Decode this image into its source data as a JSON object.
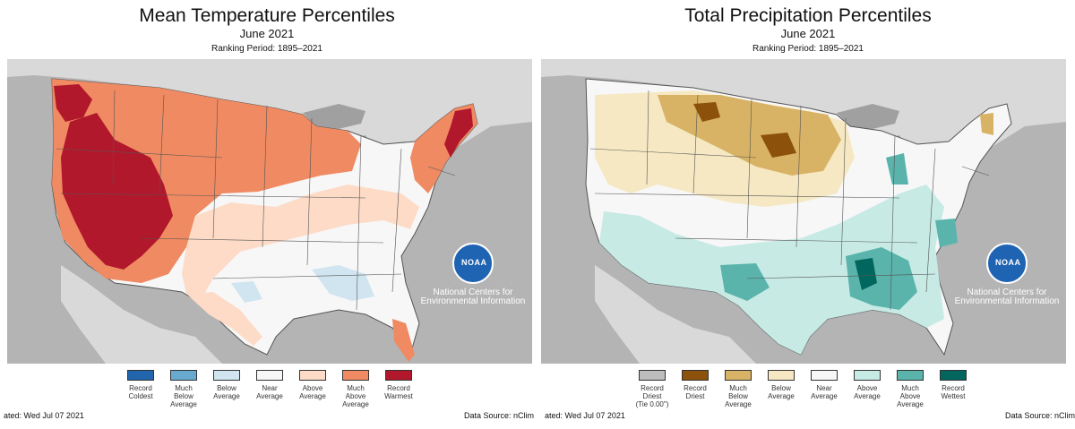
{
  "panels": [
    {
      "title": "Mean Temperature Percentiles",
      "subtitle": "June 2021",
      "ranking": "Ranking Period: 1895–2021",
      "legend": [
        {
          "label": "Record\nColdest",
          "color": "#2166ac"
        },
        {
          "label": "Much\nBelow\nAverage",
          "color": "#67a9cf"
        },
        {
          "label": "Below\nAverage",
          "color": "#d1e5f0"
        },
        {
          "label": "Near\nAverage",
          "color": "#f7f7f7"
        },
        {
          "label": "Above\nAverage",
          "color": "#fddbc7"
        },
        {
          "label": "Much\nAbove\nAverage",
          "color": "#ef8a62"
        },
        {
          "label": "Record\nWarmest",
          "color": "#b2182b"
        }
      ],
      "footer_left": "ated: Wed Jul 07 2021",
      "footer_right": "Data Source: nClim",
      "logo_text": "NOAA",
      "org": "National Centers for Environmental Information",
      "colors": {
        "ocean": "#b4b4b4",
        "land": "#d9d9d9",
        "base": "#f7f7f7",
        "above": "#fddbc7",
        "much_above": "#ef8a62",
        "record": "#b2182b",
        "below": "#d1e5f0"
      }
    },
    {
      "title": "Total Precipitation Percentiles",
      "subtitle": "June 2021",
      "ranking": "Ranking Period: 1895–2021",
      "legend": [
        {
          "label": "Record\nDriest\n(Tie 0.00\")",
          "color": "#bdbdbd"
        },
        {
          "label": "Record\nDriest",
          "color": "#8c510a"
        },
        {
          "label": "Much\nBelow\nAverage",
          "color": "#d8b365"
        },
        {
          "label": "Below\nAverage",
          "color": "#f6e8c3"
        },
        {
          "label": "Near\nAverage",
          "color": "#f7f7f7"
        },
        {
          "label": "Above\nAverage",
          "color": "#c7eae5"
        },
        {
          "label": "Much\nAbove\nAverage",
          "color": "#5ab4ac"
        },
        {
          "label": "Record\nWettest",
          "color": "#01665e"
        }
      ],
      "footer_left": "ated: Wed Jul 07 2021",
      "footer_right": "Data Source: nClim",
      "logo_text": "NOAA",
      "org": "National Centers for Environmental Information",
      "colors": {
        "ocean": "#b4b4b4",
        "land": "#d9d9d9",
        "base": "#f7f7f7",
        "dry": "#f6e8c3",
        "much_dry": "#d8b365",
        "record_dry": "#8c510a",
        "wet": "#c7eae5",
        "much_wet": "#5ab4ac",
        "record_wet": "#01665e"
      }
    }
  ]
}
